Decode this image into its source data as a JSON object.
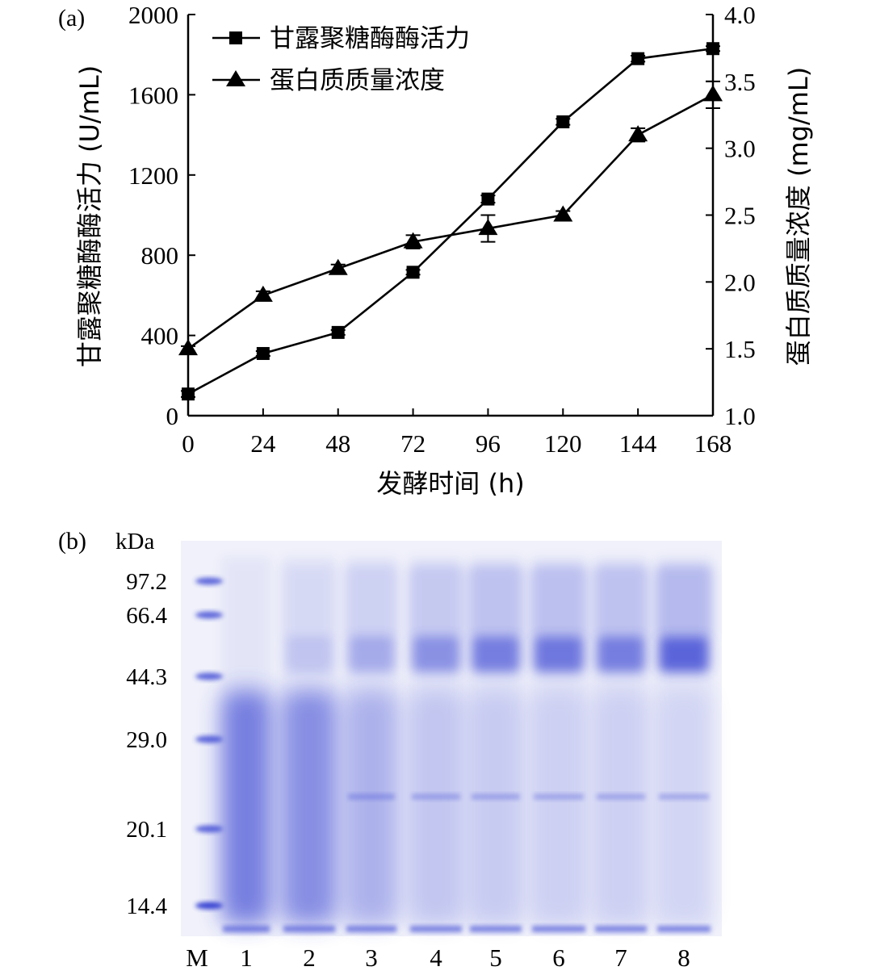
{
  "panel_a_label": "(a)",
  "panel_b_label": "(b)",
  "chart_data": [
    {
      "type": "line",
      "x": [
        0,
        24,
        48,
        72,
        96,
        120,
        144,
        168
      ],
      "xlabel": "发酵时间 (h)",
      "xlim": [
        0,
        168
      ],
      "ylabel": "甘露聚糖酶酶活力 (U/mL)",
      "ylim": [
        0,
        2000
      ],
      "yticks": [
        0,
        400,
        800,
        1200,
        1600,
        2000
      ],
      "y2label": "蛋白质质量浓度 (mg/mL)",
      "y2lim": [
        1.0,
        4.0
      ],
      "y2ticks": [
        "1.0",
        "1.5",
        "2.0",
        "2.5",
        "3.0",
        "3.5",
        "4.0"
      ],
      "legend_position": "top-left",
      "series": [
        {
          "name": "甘露聚糖酶酶活力",
          "axis": "left",
          "marker": "square",
          "values": [
            108,
            310,
            415,
            715,
            1080,
            1465,
            1780,
            1830
          ],
          "error": [
            15,
            12,
            12,
            12,
            18,
            15,
            15,
            12
          ]
        },
        {
          "name": "蛋白质质量浓度",
          "axis": "right",
          "marker": "triangle",
          "values": [
            1.5,
            1.9,
            2.1,
            2.3,
            2.4,
            2.5,
            3.1,
            3.4
          ],
          "error": [
            0.02,
            0.03,
            0.03,
            0.05,
            0.1,
            0.03,
            0.05,
            0.1
          ]
        }
      ]
    },
    {
      "type": "other",
      "unit_label": "kDa",
      "marker_bands": [
        {
          "label": "97.2",
          "kda": 97.2
        },
        {
          "label": "66.4",
          "kda": 66.4
        },
        {
          "label": "44.3",
          "kda": 44.3
        },
        {
          "label": "29.0",
          "kda": 29.0
        },
        {
          "label": "20.1",
          "kda": 20.1
        },
        {
          "label": "14.4",
          "kda": 14.4
        }
      ],
      "lanes": [
        "M",
        "1",
        "2",
        "3",
        "4",
        "5",
        "6",
        "7",
        "8"
      ],
      "lane_intensity_66kDa": [
        0,
        0,
        0.25,
        0.45,
        0.65,
        0.8,
        0.85,
        0.8,
        1.0
      ],
      "lane_intensity_low_mw": [
        0,
        1.0,
        0.85,
        0.5,
        0.3,
        0.25,
        0.2,
        0.2,
        0.15
      ],
      "colors": {
        "gel_background": "#eceef8",
        "band": "#2d3ad0"
      }
    }
  ]
}
